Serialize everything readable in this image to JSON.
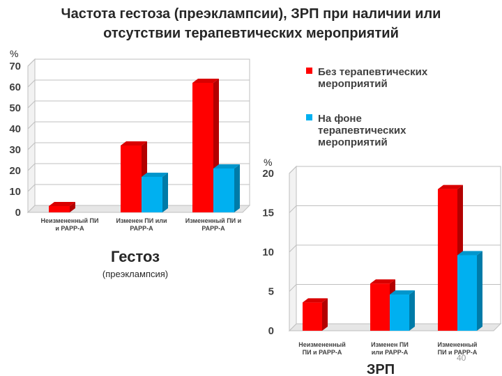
{
  "slide": {
    "title_line1": "Частота гестоза (преэклампсии), ЗРП при наличии или",
    "title_line2": "отсутствии терапевтических мероприятий",
    "page_number": "40"
  },
  "legend": {
    "entries": [
      {
        "label_lines": [
          "Без терапевтических",
          "мероприятий"
        ],
        "color": "#ff0000"
      },
      {
        "label_lines": [
          "На фоне",
          "терапевтических",
          "мероприятий"
        ],
        "color": "#00b0f0"
      }
    ]
  },
  "chart_data": [
    {
      "type": "bar",
      "title": "Гестоз",
      "subtitle": "(преэклампсия)",
      "ylabel": "%",
      "ylim": [
        0,
        70
      ],
      "yticks": [
        0,
        10,
        20,
        30,
        40,
        50,
        60,
        70
      ],
      "categories": [
        [
          "Неизмененный ПИ",
          "и PAPP-A"
        ],
        [
          "Изменен ПИ или",
          "PAPP-A"
        ],
        [
          "Измененный ПИ и",
          "PAPP-A"
        ]
      ],
      "series": [
        {
          "name": "Без терапевтических мероприятий",
          "color": "#ff0000",
          "values": [
            3,
            32,
            62
          ]
        },
        {
          "name": "На фоне терапевтических мероприятий",
          "color": "#00b0f0",
          "values": [
            0,
            17,
            21
          ]
        }
      ],
      "grid": true
    },
    {
      "type": "bar",
      "title": "ЗРП",
      "ylabel": "%",
      "ylim": [
        0,
        20
      ],
      "yticks": [
        0,
        5,
        10,
        15,
        20
      ],
      "categories": [
        [
          "Неизмененный",
          "ПИ и PAPP-A"
        ],
        [
          "Изменен ПИ",
          "или PAPP-A"
        ],
        [
          "Измененный",
          "ПИ и PAPP-A"
        ]
      ],
      "series": [
        {
          "name": "Без терапевтических мероприятий",
          "color": "#ff0000",
          "values": [
            3.6,
            6,
            18
          ]
        },
        {
          "name": "На фоне терапевтических мероприятий",
          "color": "#00b0f0",
          "values": [
            0,
            4.6,
            9.6
          ]
        }
      ],
      "grid": true
    }
  ]
}
